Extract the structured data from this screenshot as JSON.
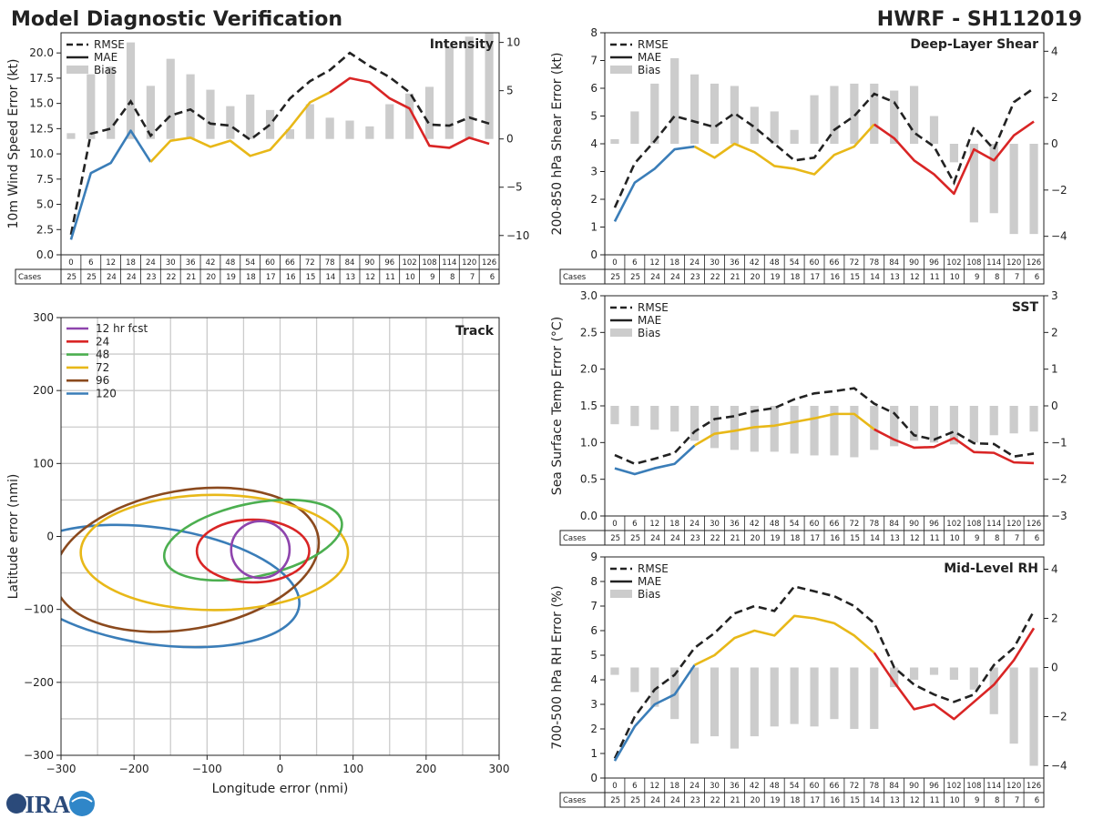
{
  "header": {
    "title": "Model Diagnostic Verification",
    "storm": "HWRF - SH112019"
  },
  "logo": {
    "text": "CIRA"
  },
  "legend_labels": {
    "rmse": "RMSE",
    "mae": "MAE",
    "bias": "Bias"
  },
  "table": {
    "cases_label": "Cases",
    "hours": [
      0,
      6,
      12,
      18,
      24,
      30,
      36,
      42,
      48,
      54,
      60,
      66,
      72,
      78,
      84,
      90,
      96,
      102,
      108,
      114,
      120,
      126
    ],
    "cases": [
      25,
      25,
      24,
      24,
      23,
      22,
      21,
      20,
      19,
      18,
      17,
      16,
      15,
      14,
      13,
      12,
      11,
      10,
      9,
      8,
      7,
      6
    ]
  },
  "colors": {
    "early": "#3a7db8",
    "mid": "#e8b818",
    "late": "#d92525",
    "rmse": "#222222",
    "bias": "#cccccc"
  },
  "chart_data": [
    {
      "id": "intensity",
      "type": "line",
      "title": "Intensity",
      "ylabel": "10m Wind Speed Error (kt)",
      "ylim": [
        0,
        22
      ],
      "yticks": [
        0.0,
        2.5,
        5.0,
        7.5,
        10.0,
        12.5,
        15.0,
        17.5,
        20.0
      ],
      "ytick_labels": [
        "0.0",
        "2.5",
        "5.0",
        "7.5",
        "10.0",
        "12.5",
        "15.0",
        "17.5",
        "20.0"
      ],
      "y2lim": [
        -12,
        11
      ],
      "y2ticks": [
        -10,
        -5,
        0,
        5,
        10
      ],
      "y2tick_labels": [
        "−10",
        "−5",
        "0",
        "5",
        "10"
      ],
      "rmse": [
        2.0,
        12.0,
        12.5,
        15.2,
        11.8,
        13.8,
        14.4,
        13.0,
        12.8,
        11.4,
        12.9,
        15.5,
        17.2,
        18.3,
        20.0,
        18.7,
        17.6,
        16.1,
        12.9,
        12.8,
        13.6,
        13.0
      ],
      "mae": [
        1.5,
        8.1,
        9.1,
        12.3,
        9.2,
        11.3,
        11.6,
        10.7,
        11.3,
        9.8,
        10.4,
        12.6,
        15.1,
        16.1,
        17.5,
        17.1,
        15.5,
        14.5,
        10.8,
        10.6,
        11.6,
        11.0
      ],
      "bias": [
        0.6,
        6.7,
        7.5,
        10.0,
        5.5,
        8.3,
        6.7,
        5.1,
        3.4,
        4.6,
        3.0,
        1.0,
        3.6,
        2.2,
        1.9,
        1.3,
        3.6,
        4.7,
        5.4,
        9.6,
        10.6,
        11.0
      ]
    },
    {
      "id": "shear",
      "type": "line",
      "title": "Deep-Layer Shear",
      "ylabel": "200-850 hPa Shear Error (kt)",
      "ylim": [
        0,
        8
      ],
      "yticks": [
        0,
        1,
        2,
        3,
        4,
        5,
        6,
        7,
        8
      ],
      "ytick_labels": [
        "0",
        "1",
        "2",
        "3",
        "4",
        "5",
        "6",
        "7",
        "8"
      ],
      "y2lim": [
        -4.8,
        4.8
      ],
      "y2ticks": [
        -4,
        -2,
        0,
        2,
        4
      ],
      "y2tick_labels": [
        "−4",
        "−2",
        "0",
        "2",
        "4"
      ],
      "rmse": [
        1.7,
        3.3,
        4.1,
        5.0,
        4.8,
        4.6,
        5.1,
        4.6,
        4.0,
        3.4,
        3.5,
        4.5,
        5.0,
        5.8,
        5.5,
        4.4,
        3.9,
        2.6,
        4.6,
        3.8,
        5.5,
        6.0
      ],
      "mae": [
        1.2,
        2.6,
        3.1,
        3.8,
        3.9,
        3.5,
        4.0,
        3.7,
        3.2,
        3.1,
        2.9,
        3.6,
        3.9,
        4.7,
        4.2,
        3.4,
        2.9,
        2.2,
        3.8,
        3.4,
        4.3,
        4.8
      ],
      "bias": [
        0.2,
        1.4,
        2.6,
        3.7,
        3.0,
        2.6,
        2.5,
        1.6,
        1.4,
        0.6,
        2.1,
        2.5,
        2.6,
        2.6,
        2.3,
        2.5,
        1.2,
        -0.8,
        -3.4,
        -3.0,
        -3.9,
        -3.9
      ]
    },
    {
      "id": "sst",
      "type": "line",
      "title": "SST",
      "ylabel": "Sea Surface Temp Error (°C)",
      "ylim": [
        0,
        3
      ],
      "yticks": [
        0.0,
        0.5,
        1.0,
        1.5,
        2.0,
        2.5,
        3.0
      ],
      "ytick_labels": [
        "0.0",
        "0.5",
        "1.0",
        "1.5",
        "2.0",
        "2.5",
        "3.0"
      ],
      "y2lim": [
        -3,
        3
      ],
      "y2ticks": [
        -3,
        -2,
        -1,
        0,
        1,
        2,
        3
      ],
      "y2tick_labels": [
        "−3",
        "−2",
        "−1",
        "0",
        "1",
        "2",
        "3"
      ],
      "rmse": [
        0.83,
        0.71,
        0.78,
        0.86,
        1.15,
        1.32,
        1.36,
        1.43,
        1.47,
        1.59,
        1.67,
        1.7,
        1.74,
        1.53,
        1.4,
        1.1,
        1.04,
        1.15,
        0.99,
        0.98,
        0.81,
        0.85
      ],
      "mae": [
        0.65,
        0.57,
        0.65,
        0.71,
        0.96,
        1.12,
        1.16,
        1.21,
        1.23,
        1.28,
        1.33,
        1.39,
        1.39,
        1.18,
        1.04,
        0.93,
        0.94,
        1.06,
        0.87,
        0.86,
        0.73,
        0.72
      ],
      "bias": [
        -0.5,
        -0.55,
        -0.65,
        -0.7,
        -0.95,
        -1.15,
        -1.2,
        -1.25,
        -1.25,
        -1.3,
        -1.35,
        -1.35,
        -1.4,
        -1.2,
        -1.1,
        -0.95,
        -1.0,
        -1.05,
        -1.0,
        -0.8,
        -0.75,
        -0.7
      ]
    },
    {
      "id": "rh",
      "type": "line",
      "title": "Mid-Level RH",
      "ylabel": "700-500 hPa RH Error (%)",
      "ylim": [
        0,
        9
      ],
      "yticks": [
        0,
        1,
        2,
        3,
        4,
        5,
        6,
        7,
        8,
        9
      ],
      "ytick_labels": [
        "0",
        "1",
        "2",
        "3",
        "4",
        "5",
        "6",
        "7",
        "8",
        "9"
      ],
      "y2lim": [
        -4.5,
        4.5
      ],
      "y2ticks": [
        -4,
        -2,
        0,
        2,
        4
      ],
      "y2tick_labels": [
        "−4",
        "−2",
        "0",
        "2",
        "4"
      ],
      "rmse": [
        0.8,
        2.5,
        3.6,
        4.2,
        5.3,
        5.9,
        6.7,
        7.0,
        6.8,
        7.8,
        7.6,
        7.4,
        7.0,
        6.3,
        4.5,
        3.8,
        3.4,
        3.1,
        3.4,
        4.6,
        5.3,
        6.8
      ],
      "mae": [
        0.7,
        2.1,
        3.0,
        3.4,
        4.6,
        5.0,
        5.7,
        6.0,
        5.8,
        6.6,
        6.5,
        6.3,
        5.8,
        5.1,
        3.9,
        2.8,
        3.0,
        2.4,
        3.1,
        3.8,
        4.8,
        6.1
      ],
      "bias": [
        -0.3,
        -1.0,
        -1.6,
        -2.1,
        -3.1,
        -2.8,
        -3.3,
        -2.8,
        -2.4,
        -2.3,
        -2.4,
        -2.1,
        -2.5,
        -2.5,
        -0.8,
        -0.5,
        -0.3,
        -0.5,
        -0.9,
        -1.9,
        -3.1,
        -4.0
      ]
    },
    {
      "id": "track",
      "type": "scatter",
      "title": "Track",
      "xlabel": "Longitude error (nmi)",
      "ylabel": "Latitude error (nmi)",
      "xlim": [
        -300,
        300
      ],
      "ylim": [
        -300,
        300
      ],
      "ticks": [
        -300,
        -200,
        -100,
        0,
        100,
        200,
        300
      ],
      "tick_labels": [
        "−300",
        "−200",
        "−100",
        "0",
        "100",
        "200",
        "300"
      ],
      "ellipses": [
        {
          "label": "12 hr fcst",
          "color": "#8e44ad",
          "cx": -27,
          "cy": -18,
          "rx": 40,
          "ry": 39,
          "rot": 0
        },
        {
          "label": "24",
          "color": "#d92525",
          "cx": -37,
          "cy": -20,
          "rx": 77,
          "ry": 43,
          "rot": 0
        },
        {
          "label": "48",
          "color": "#4caf50",
          "cx": -37,
          "cy": -5,
          "rx": 124,
          "ry": 50,
          "rot": 12
        },
        {
          "label": "72",
          "color": "#e8b818",
          "cx": -90,
          "cy": -22,
          "rx": 183,
          "ry": 79,
          "rot": 0
        },
        {
          "label": "96",
          "color": "#8b4a1e",
          "cx": -128,
          "cy": -32,
          "rx": 183,
          "ry": 95,
          "rot": 10
        },
        {
          "label": "120",
          "color": "#3a7db8",
          "cx": -170,
          "cy": -68,
          "rx": 198,
          "ry": 80,
          "rot": -8
        }
      ]
    }
  ]
}
